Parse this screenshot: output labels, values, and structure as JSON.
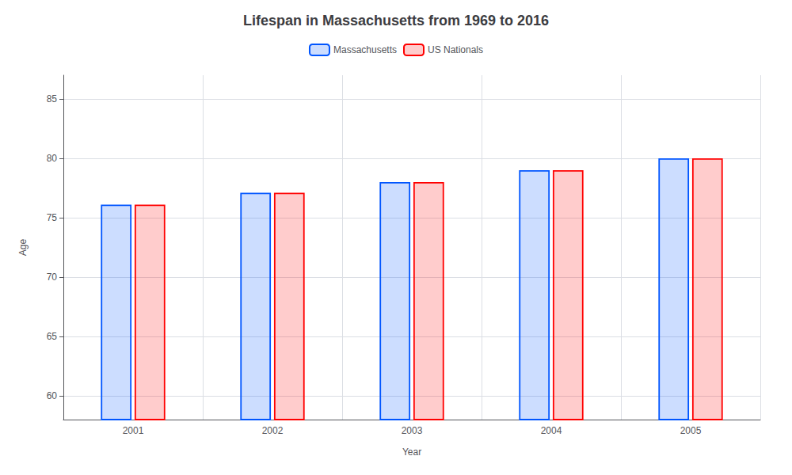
{
  "chart_data": {
    "type": "bar",
    "title": "Lifespan in Massachusetts from 1969 to 2016",
    "xlabel": "Year",
    "ylabel": "Age",
    "categories": [
      "2001",
      "2002",
      "2003",
      "2004",
      "2005"
    ],
    "series": [
      {
        "name": "Massachusetts",
        "color": "#0055ff",
        "values": [
          76.1,
          77.1,
          78.0,
          79.0,
          80.0
        ]
      },
      {
        "name": "US Nationals",
        "color": "#ff0000",
        "values": [
          76.1,
          77.1,
          78.0,
          79.0,
          80.0
        ]
      }
    ],
    "ylim": [
      58,
      87
    ],
    "yticks": [
      60,
      65,
      70,
      75,
      80,
      85
    ],
    "grid": true,
    "legend": "top"
  }
}
